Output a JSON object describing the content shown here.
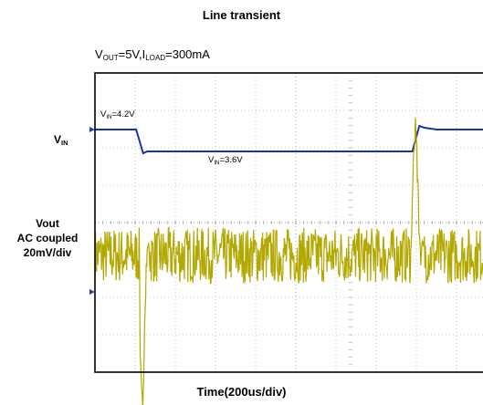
{
  "chart_data": {
    "type": "line",
    "title": "Line transient",
    "condition": {
      "vout_main": "V",
      "vout_sub": "OUT",
      "vout_rest": "=5V,I",
      "iload_sub": "LOAD",
      "iload_rest": "=300mA"
    },
    "xlabel": "Time(200us/div)",
    "time_per_div_us": 200,
    "divisions": {
      "x": 10,
      "y": 8
    },
    "x_range_us": [
      0,
      2000
    ],
    "grid": true,
    "channel_labels": {
      "vin_main": "V",
      "vin_sub": "IN",
      "vout_line1": "Vout",
      "vout_line2": "AC coupled",
      "vout_line3": "20mV/div"
    },
    "annotations": [
      {
        "main": "V",
        "sub": "IN",
        "rest": "=4.2V"
      },
      {
        "main": "V",
        "sub": "IN",
        "rest": "=3.6V"
      }
    ],
    "series": [
      {
        "color": "#1a33a8",
        "x": [
          0,
          205,
          240,
          260,
          1580,
          1615,
          1640,
          1700,
          2000
        ],
        "y": [
          4.2,
          4.2,
          3.55,
          3.6,
          3.6,
          4.3,
          4.25,
          4.2,
          4.2
        ],
        "units": "V"
      },
      {
        "color": "#b3a800",
        "baseline_mV": 0,
        "noise_band_mV": 15,
        "undershoot": {
          "t_us": 235,
          "min_mV": -80
        },
        "overshoot": {
          "t_us": 1595,
          "max_mV": 70
        },
        "units": "mV"
      }
    ],
    "colors": {
      "grid": "#999999",
      "frame": "#000000",
      "marker": "#1f3fc8"
    }
  }
}
